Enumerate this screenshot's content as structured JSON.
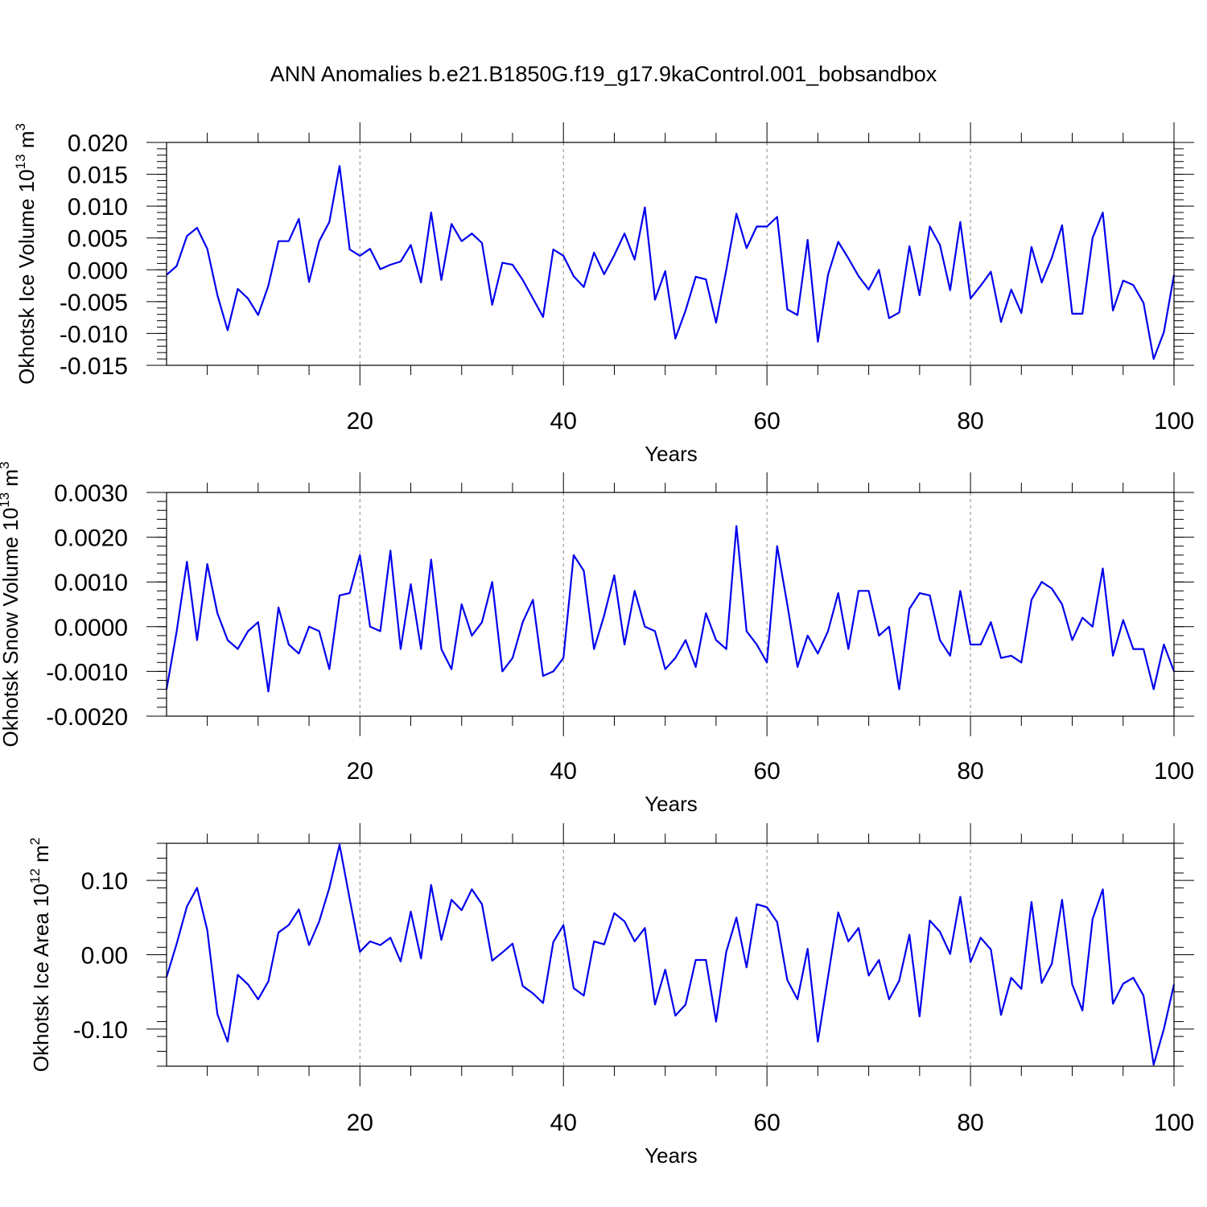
{
  "figure": {
    "title": "ANN Anomalies b.e21.B1850G.f19_g17.9kaControl.001_bobsandbox"
  },
  "chart_data": [
    {
      "type": "line",
      "title": "",
      "xlabel": "Years",
      "ylabel": "Okhotsk Ice Volume 10",
      "ylabel_sup": "13",
      "ylabel_unit": " m",
      "ylabel_unit_sup": "3",
      "xlim": [
        1,
        100
      ],
      "ylim": [
        -0.015,
        0.02
      ],
      "yticks": [
        -0.015,
        -0.01,
        -0.005,
        0.0,
        0.005,
        0.01,
        0.015,
        0.02
      ],
      "ytick_labels": [
        "-0.015",
        "-0.010",
        "-0.005",
        "0.000",
        "0.005",
        "0.010",
        "0.015",
        "0.020"
      ],
      "xticks": [
        20,
        40,
        60,
        80,
        100
      ],
      "xtick_labels": [
        "20",
        "40",
        "60",
        "80",
        "100"
      ],
      "grid_x": [
        20,
        40,
        60,
        80
      ],
      "x_start": 1,
      "color": "#0000ee",
      "values": [
        -0.0008,
        0.0006,
        0.0053,
        0.0066,
        0.0033,
        -0.004,
        -0.0095,
        -0.003,
        -0.0045,
        -0.0071,
        -0.0025,
        0.0045,
        0.0045,
        0.008,
        -0.0019,
        0.0045,
        0.0075,
        0.0163,
        0.0032,
        0.0022,
        0.0033,
        0.0001,
        0.0008,
        0.0013,
        0.0039,
        -0.002,
        0.009,
        -0.0016,
        0.0072,
        0.0045,
        0.0057,
        0.0042,
        -0.0055,
        0.0011,
        0.0008,
        -0.0016,
        -0.0045,
        -0.0074,
        0.0032,
        0.0022,
        -0.001,
        -0.0027,
        0.0027,
        -0.0007,
        0.0023,
        0.0057,
        0.0016,
        0.0098,
        -0.0047,
        -0.0002,
        -0.0108,
        -0.0064,
        -0.0011,
        -0.0015,
        -0.0083,
        0.0,
        0.0088,
        0.0034,
        0.0068,
        0.0068,
        0.0083,
        -0.0062,
        -0.0071,
        0.0047,
        -0.0113,
        -0.0008,
        0.0044,
        0.0018,
        -0.001,
        -0.0031,
        0.0,
        -0.0076,
        -0.0067,
        0.0037,
        -0.004,
        0.0068,
        0.0039,
        -0.0032,
        0.0075,
        -0.0045,
        -0.0025,
        -0.0003,
        -0.0082,
        -0.0031,
        -0.0068,
        0.0036,
        -0.002,
        0.0019,
        0.007,
        -0.0069,
        -0.0069,
        0.005,
        0.009,
        -0.0064,
        -0.0017,
        -0.0024,
        -0.0052,
        -0.014,
        -0.0098,
        -0.0008
      ]
    },
    {
      "type": "line",
      "title": "",
      "xlabel": "Years",
      "ylabel": "Okhotsk Snow Volume 10",
      "ylabel_sup": "13",
      "ylabel_unit": " m",
      "ylabel_unit_sup": "3",
      "xlim": [
        1,
        100
      ],
      "ylim": [
        -0.002,
        0.003
      ],
      "yticks": [
        -0.002,
        -0.001,
        0.0,
        0.001,
        0.002,
        0.003
      ],
      "ytick_labels": [
        "-0.0020",
        "-0.0010",
        "0.0000",
        "0.0010",
        "0.0020",
        "0.0030"
      ],
      "xticks": [
        20,
        40,
        60,
        80,
        100
      ],
      "xtick_labels": [
        "20",
        "40",
        "60",
        "80",
        "100"
      ],
      "grid_x": [
        20,
        40,
        60,
        80
      ],
      "x_start": 1,
      "color": "#0000ee",
      "values": [
        -0.0014,
        -0.0001,
        0.00145,
        -0.0003,
        0.0014,
        0.0003,
        -0.0003,
        -0.0005,
        -0.0001,
        0.0001,
        -0.00145,
        0.00043,
        -0.0004,
        -0.0006,
        0.0,
        -0.0001,
        -0.00095,
        0.0007,
        0.00075,
        0.0016,
        0.0,
        -0.0001,
        0.0017,
        -0.0005,
        0.00095,
        -0.0005,
        0.0015,
        -0.0005,
        -0.00095,
        0.0005,
        -0.0002,
        0.0001,
        0.001,
        -0.001,
        -0.0007,
        0.0001,
        0.0006,
        -0.0011,
        -0.001,
        -0.0007,
        0.0016,
        0.00125,
        -0.0005,
        0.00025,
        0.00115,
        -0.0004,
        0.0008,
        0.0,
        -0.0001,
        -0.00095,
        -0.0007,
        -0.0003,
        -0.0009,
        0.0003,
        -0.0003,
        -0.0005,
        0.00225,
        -0.0001,
        -0.0004,
        -0.0008,
        0.0018,
        0.0005,
        -0.0009,
        -0.0002,
        -0.0006,
        -0.0001,
        0.00075,
        -0.0005,
        0.0008,
        0.0008,
        -0.0002,
        0.0,
        -0.0014,
        0.0004,
        0.00075,
        0.0007,
        -0.0003,
        -0.00065,
        0.0008,
        -0.0004,
        -0.0004,
        0.0001,
        -0.0007,
        -0.00065,
        -0.0008,
        0.0006,
        0.001,
        0.00085,
        0.0005,
        -0.0003,
        0.0002,
        0.0,
        0.0013,
        -0.00065,
        0.00015,
        -0.0005,
        -0.0005,
        -0.0014,
        -0.0004,
        -0.001
      ]
    },
    {
      "type": "line",
      "title": "",
      "xlabel": "Years",
      "ylabel": "Okhotsk Ice Area 10",
      "ylabel_sup": "12",
      "ylabel_unit": " m",
      "ylabel_unit_sup": "2",
      "xlim": [
        1,
        100
      ],
      "ylim": [
        -0.15,
        0.15
      ],
      "yticks": [
        -0.1,
        0.0,
        0.1
      ],
      "ytick_labels": [
        "-0.10",
        "0.00",
        "0.10"
      ],
      "xticks": [
        20,
        40,
        60,
        80,
        100
      ],
      "xtick_labels": [
        "20",
        "40",
        "60",
        "80",
        "100"
      ],
      "grid_x": [
        20,
        40,
        60,
        80
      ],
      "x_start": 1,
      "color": "#0000ee",
      "values": [
        -0.03,
        0.015,
        0.065,
        0.09,
        0.033,
        -0.08,
        -0.117,
        -0.027,
        -0.04,
        -0.06,
        -0.036,
        0.03,
        0.04,
        0.061,
        0.013,
        0.045,
        0.09,
        0.148,
        0.075,
        0.004,
        0.018,
        0.013,
        0.023,
        -0.009,
        0.058,
        -0.005,
        0.094,
        0.02,
        0.074,
        0.06,
        0.088,
        0.068,
        -0.008,
        0.003,
        0.015,
        -0.042,
        -0.052,
        -0.065,
        0.017,
        0.04,
        -0.045,
        -0.055,
        0.018,
        0.014,
        0.056,
        0.045,
        0.018,
        0.036,
        -0.067,
        -0.02,
        -0.082,
        -0.067,
        -0.007,
        -0.007,
        -0.09,
        0.004,
        0.05,
        -0.017,
        0.068,
        0.064,
        0.044,
        -0.034,
        -0.06,
        0.008,
        -0.117,
        -0.03,
        0.057,
        0.018,
        0.036,
        -0.028,
        -0.007,
        -0.06,
        -0.035,
        0.027,
        -0.083,
        0.046,
        0.031,
        0.001,
        0.078,
        -0.01,
        0.023,
        0.007,
        -0.081,
        -0.031,
        -0.046,
        0.071,
        -0.038,
        -0.012,
        0.074,
        -0.04,
        -0.075,
        0.048,
        0.088,
        -0.066,
        -0.039,
        -0.031,
        -0.055,
        -0.148,
        -0.1,
        -0.04
      ]
    }
  ]
}
